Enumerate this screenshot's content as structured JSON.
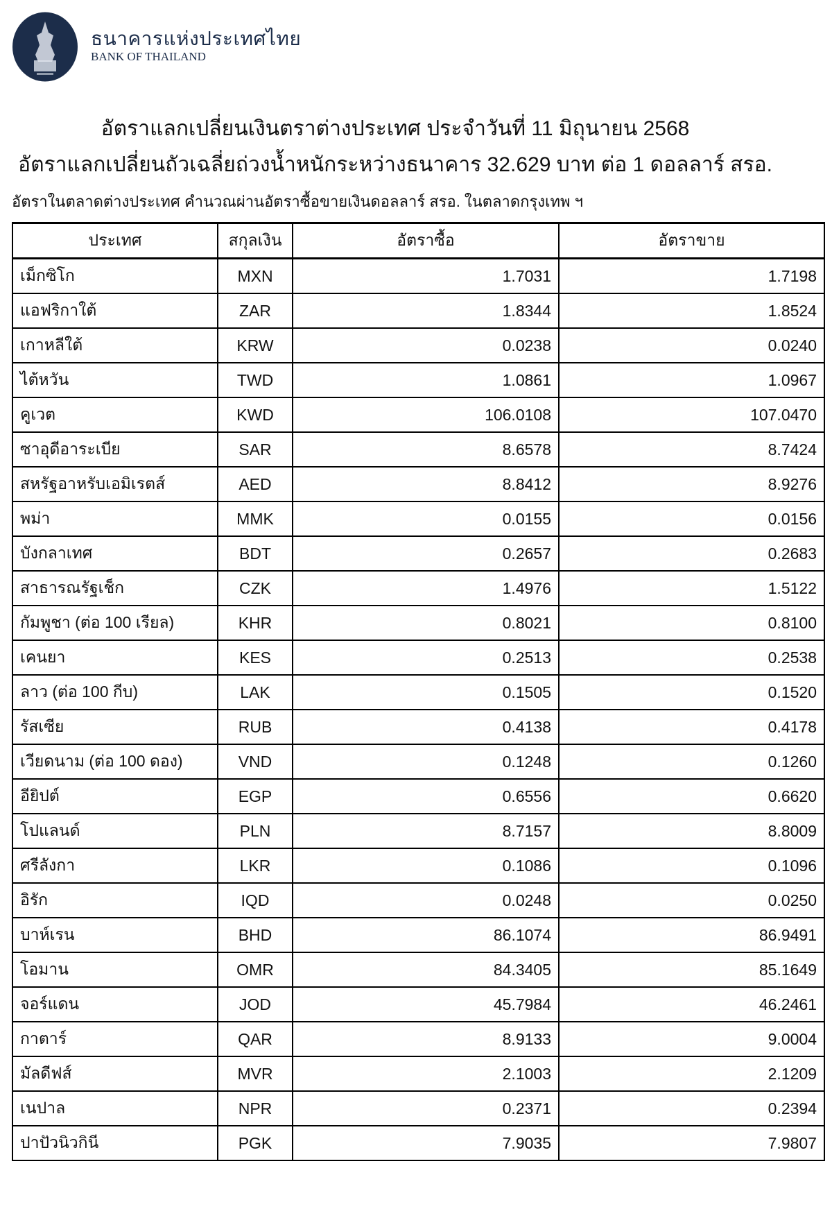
{
  "header": {
    "logo_text_th": "ธนาคารแห่งประเทศไทย",
    "logo_text_en": "BANK OF THAILAND",
    "logo_icon": "bank-of-thailand-emblem",
    "brand_color": "#1c2d4a"
  },
  "title": "อัตราแลกเปลี่ยนเงินตราต่างประเทศ ประจำวันที่ 11 มิถุนายน 2568",
  "subtitle": "อัตราแลกเปลี่ยนถัวเฉลี่ยถ่วงน้ำหนักระหว่างธนาคาร 32.629 บาท ต่อ 1 ดอลลาร์ สรอ.",
  "note": "อัตราในตลาดต่างประเทศ คำนวณผ่านอัตราซื้อขายเงินดอลลาร์ สรอ. ในตลาดกรุงเทพ ฯ",
  "table": {
    "headers": [
      "ประเทศ",
      "สกุลเงิน",
      "อัตราซื้อ",
      "อัตราขาย"
    ],
    "rows": [
      [
        "เม็กซิโก",
        "MXN",
        "1.7031",
        "1.7198"
      ],
      [
        "แอฟริกาใต้",
        "ZAR",
        "1.8344",
        "1.8524"
      ],
      [
        "เกาหลีใต้",
        "KRW",
        "0.0238",
        "0.0240"
      ],
      [
        "ไต้หวัน",
        "TWD",
        "1.0861",
        "1.0967"
      ],
      [
        "คูเวต",
        "KWD",
        "106.0108",
        "107.0470"
      ],
      [
        "ซาอุดีอาระเบีย",
        "SAR",
        "8.6578",
        "8.7424"
      ],
      [
        "สหรัฐอาหรับเอมิเรตส์",
        "AED",
        "8.8412",
        "8.9276"
      ],
      [
        "พม่า",
        "MMK",
        "0.0155",
        "0.0156"
      ],
      [
        "บังกลาเทศ",
        "BDT",
        "0.2657",
        "0.2683"
      ],
      [
        "สาธารณรัฐเช็ก",
        "CZK",
        "1.4976",
        "1.5122"
      ],
      [
        "กัมพูชา (ต่อ 100 เรียล)",
        "KHR",
        "0.8021",
        "0.8100"
      ],
      [
        "เคนยา",
        "KES",
        "0.2513",
        "0.2538"
      ],
      [
        "ลาว (ต่อ 100 กีบ)",
        "LAK",
        "0.1505",
        "0.1520"
      ],
      [
        "รัสเซีย",
        "RUB",
        "0.4138",
        "0.4178"
      ],
      [
        "เวียดนาม (ต่อ 100 ดอง)",
        "VND",
        "0.1248",
        "0.1260"
      ],
      [
        "อียิปต์",
        "EGP",
        "0.6556",
        "0.6620"
      ],
      [
        "โปแลนด์",
        "PLN",
        "8.7157",
        "8.8009"
      ],
      [
        "ศรีลังกา",
        "LKR",
        "0.1086",
        "0.1096"
      ],
      [
        "อิรัก",
        "IQD",
        "0.0248",
        "0.0250"
      ],
      [
        "บาห์เรน",
        "BHD",
        "86.1074",
        "86.9491"
      ],
      [
        "โอมาน",
        "OMR",
        "84.3405",
        "85.1649"
      ],
      [
        "จอร์แดน",
        "JOD",
        "45.7984",
        "46.2461"
      ],
      [
        "กาตาร์",
        "QAR",
        "8.9133",
        "9.0004"
      ],
      [
        "มัลดีฟส์",
        "MVR",
        "2.1003",
        "2.1209"
      ],
      [
        "เนปาล",
        "NPR",
        "0.2371",
        "0.2394"
      ],
      [
        "ปาปัวนิวกินี",
        "PGK",
        "7.9035",
        "7.9807"
      ]
    ]
  }
}
